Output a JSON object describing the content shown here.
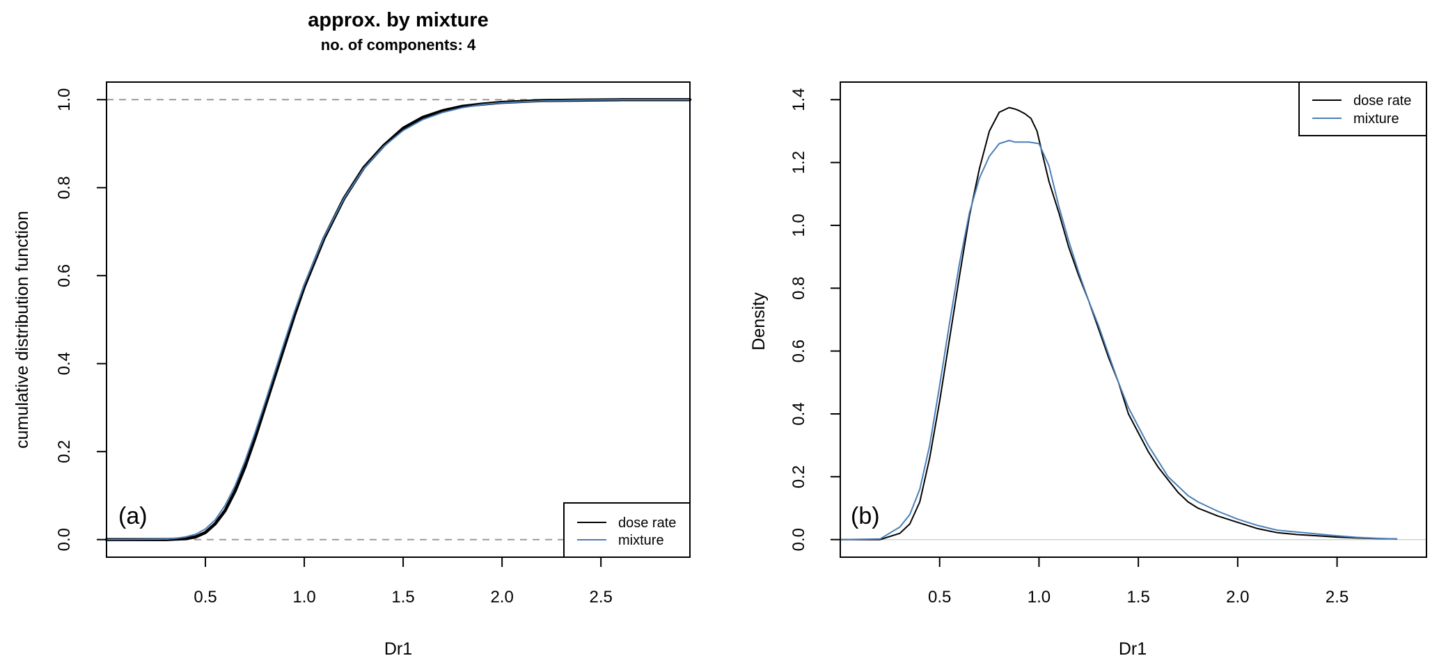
{
  "colors": {
    "dose_rate": "#000000",
    "mixture": "#4a7fb5",
    "frame": "#000000",
    "ref_dashed": "#9a9a9a",
    "ref_solid": "#d0d0d0"
  },
  "chart_data": [
    {
      "type": "line",
      "panel_label": "(a)",
      "title": "approx. by mixture",
      "subtitle": "no. of components: 4",
      "xlabel": "Dr1",
      "ylabel": "cumulative distribution function",
      "xlim": [
        0.0,
        2.95
      ],
      "ylim": [
        -0.04,
        1.04
      ],
      "xticks": [
        0.5,
        1.0,
        1.5,
        2.0,
        2.5
      ],
      "xtick_labels": [
        "0.5",
        "1.0",
        "1.5",
        "2.0",
        "2.5"
      ],
      "yticks": [
        0.0,
        0.2,
        0.4,
        0.6,
        0.8,
        1.0
      ],
      "ytick_labels": [
        "0.0",
        "0.2",
        "0.4",
        "0.6",
        "0.8",
        "1.0"
      ],
      "reference_lines": [
        0.0,
        1.0
      ],
      "legend_position": "bottom-right",
      "legend": [
        "dose rate",
        "mixture"
      ],
      "series": [
        {
          "name": "dose rate",
          "color": "#000000",
          "width": 4.5,
          "x": [
            0.0,
            0.3,
            0.4,
            0.45,
            0.5,
            0.55,
            0.6,
            0.65,
            0.7,
            0.75,
            0.8,
            0.85,
            0.9,
            0.95,
            1.0,
            1.1,
            1.2,
            1.3,
            1.4,
            1.5,
            1.6,
            1.7,
            1.8,
            1.9,
            2.0,
            2.2,
            2.4,
            2.6,
            2.95
          ],
          "y": [
            0.0,
            0.0,
            0.002,
            0.006,
            0.016,
            0.036,
            0.066,
            0.11,
            0.165,
            0.23,
            0.3,
            0.37,
            0.44,
            0.51,
            0.575,
            0.685,
            0.775,
            0.845,
            0.895,
            0.935,
            0.96,
            0.975,
            0.985,
            0.99,
            0.994,
            0.998,
            0.999,
            1.0,
            1.0
          ]
        },
        {
          "name": "mixture",
          "color": "#4a7fb5",
          "width": 2,
          "x": [
            0.0,
            0.3,
            0.35,
            0.4,
            0.45,
            0.5,
            0.55,
            0.6,
            0.65,
            0.7,
            0.75,
            0.8,
            0.85,
            0.9,
            0.95,
            1.0,
            1.1,
            1.2,
            1.3,
            1.4,
            1.5,
            1.6,
            1.7,
            1.8,
            1.9,
            2.0,
            2.2,
            2.4,
            2.6,
            2.95
          ],
          "y": [
            0.0,
            0.001,
            0.003,
            0.006,
            0.012,
            0.024,
            0.045,
            0.078,
            0.122,
            0.178,
            0.242,
            0.31,
            0.38,
            0.45,
            0.518,
            0.58,
            0.688,
            0.775,
            0.843,
            0.893,
            0.93,
            0.955,
            0.971,
            0.982,
            0.989,
            0.993,
            0.997,
            0.999,
            1.0,
            1.0
          ]
        }
      ]
    },
    {
      "type": "line",
      "panel_label": "(b)",
      "title": "",
      "xlabel": "Dr1",
      "ylabel": "Density",
      "xlim": [
        0.0,
        2.95
      ],
      "ylim": [
        -0.056,
        1.456
      ],
      "xticks": [
        0.5,
        1.0,
        1.5,
        2.0,
        2.5
      ],
      "xtick_labels": [
        "0.5",
        "1.0",
        "1.5",
        "2.0",
        "2.5"
      ],
      "yticks": [
        0.0,
        0.2,
        0.4,
        0.6,
        0.8,
        1.0,
        1.2,
        1.4
      ],
      "ytick_labels": [
        "0.0",
        "0.2",
        "0.4",
        "0.6",
        "0.8",
        "1.0",
        "1.2",
        "1.4"
      ],
      "reference_lines": [
        0.0
      ],
      "legend_position": "top-right",
      "legend": [
        "dose rate",
        "mixture"
      ],
      "series": [
        {
          "name": "dose rate",
          "color": "#000000",
          "width": 2,
          "x": [
            0.0,
            0.2,
            0.3,
            0.35,
            0.4,
            0.45,
            0.5,
            0.55,
            0.6,
            0.65,
            0.7,
            0.75,
            0.8,
            0.85,
            0.88,
            0.9,
            0.93,
            0.96,
            0.99,
            1.02,
            1.05,
            1.1,
            1.15,
            1.2,
            1.25,
            1.3,
            1.35,
            1.4,
            1.45,
            1.5,
            1.55,
            1.6,
            1.65,
            1.7,
            1.75,
            1.8,
            1.9,
            2.0,
            2.1,
            2.2,
            2.3,
            2.4,
            2.5,
            2.6,
            2.7,
            2.8
          ],
          "y": [
            0.0,
            0.0,
            0.02,
            0.05,
            0.12,
            0.26,
            0.44,
            0.64,
            0.84,
            1.03,
            1.18,
            1.3,
            1.36,
            1.375,
            1.37,
            1.365,
            1.355,
            1.34,
            1.3,
            1.22,
            1.14,
            1.04,
            0.93,
            0.84,
            0.76,
            0.67,
            0.58,
            0.5,
            0.4,
            0.34,
            0.28,
            0.23,
            0.19,
            0.15,
            0.12,
            0.1,
            0.075,
            0.055,
            0.035,
            0.022,
            0.016,
            0.012,
            0.008,
            0.005,
            0.003,
            0.002
          ]
        },
        {
          "name": "mixture",
          "color": "#4a7fb5",
          "width": 2,
          "x": [
            0.0,
            0.2,
            0.3,
            0.35,
            0.4,
            0.45,
            0.5,
            0.55,
            0.6,
            0.65,
            0.7,
            0.75,
            0.8,
            0.85,
            0.88,
            0.9,
            0.95,
            1.0,
            1.05,
            1.1,
            1.15,
            1.2,
            1.25,
            1.3,
            1.35,
            1.4,
            1.45,
            1.5,
            1.55,
            1.6,
            1.65,
            1.7,
            1.75,
            1.8,
            1.9,
            2.0,
            2.1,
            2.2,
            2.3,
            2.4,
            2.5,
            2.6,
            2.7,
            2.8
          ],
          "y": [
            0.0,
            0.002,
            0.04,
            0.08,
            0.16,
            0.3,
            0.49,
            0.69,
            0.88,
            1.04,
            1.15,
            1.22,
            1.26,
            1.27,
            1.265,
            1.265,
            1.265,
            1.26,
            1.19,
            1.06,
            0.95,
            0.85,
            0.76,
            0.68,
            0.59,
            0.5,
            0.42,
            0.36,
            0.3,
            0.25,
            0.2,
            0.17,
            0.14,
            0.12,
            0.09,
            0.065,
            0.045,
            0.03,
            0.024,
            0.018,
            0.012,
            0.007,
            0.004,
            0.002
          ]
        }
      ]
    }
  ]
}
